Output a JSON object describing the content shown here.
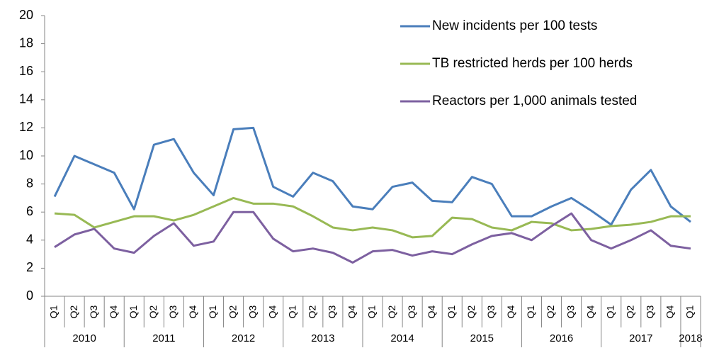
{
  "chart_data": {
    "type": "line",
    "category_groups": [
      {
        "label": "2010",
        "categories": [
          "Q1",
          "Q2",
          "Q3",
          "Q4"
        ]
      },
      {
        "label": "2011",
        "categories": [
          "Q1",
          "Q2",
          "Q3",
          "Q4"
        ]
      },
      {
        "label": "2012",
        "categories": [
          "Q1",
          "Q2",
          "Q3",
          "Q4"
        ]
      },
      {
        "label": "2013",
        "categories": [
          "Q1",
          "Q2",
          "Q3",
          "Q4"
        ]
      },
      {
        "label": "2014",
        "categories": [
          "Q1",
          "Q2",
          "Q3",
          "Q4"
        ]
      },
      {
        "label": "2015",
        "categories": [
          "Q1",
          "Q2",
          "Q3",
          "Q4"
        ]
      },
      {
        "label": "2016",
        "categories": [
          "Q1",
          "Q2",
          "Q3",
          "Q4"
        ]
      },
      {
        "label": "2017",
        "categories": [
          "Q1",
          "Q2",
          "Q3",
          "Q4"
        ]
      },
      {
        "label": "2018",
        "categories": [
          "Q1"
        ]
      }
    ],
    "series": [
      {
        "name": "New incidents per 100 tests",
        "color": "#4a7ebb",
        "values": [
          7.1,
          10.0,
          9.4,
          8.8,
          6.2,
          10.8,
          11.2,
          8.8,
          7.2,
          11.9,
          12.0,
          7.8,
          7.1,
          8.8,
          8.2,
          6.4,
          6.2,
          7.8,
          8.1,
          6.8,
          6.7,
          8.5,
          8.0,
          5.7,
          5.7,
          6.4,
          7.0,
          6.1,
          5.1,
          7.6,
          9.0,
          6.4,
          5.3
        ]
      },
      {
        "name": "TB restricted herds per 100 herds",
        "color": "#98b954",
        "values": [
          5.9,
          5.8,
          4.9,
          5.3,
          5.7,
          5.7,
          5.4,
          5.8,
          6.4,
          7.0,
          6.6,
          6.6,
          6.4,
          5.7,
          4.9,
          4.7,
          4.9,
          4.7,
          4.2,
          4.3,
          5.6,
          5.5,
          4.9,
          4.7,
          5.3,
          5.2,
          4.7,
          4.8,
          5.0,
          5.1,
          5.3,
          5.7,
          5.7
        ]
      },
      {
        "name": "Reactors per 1,000 animals tested",
        "color": "#7d60a0",
        "values": [
          3.5,
          4.4,
          4.8,
          3.4,
          3.1,
          4.3,
          5.2,
          3.6,
          3.9,
          6.0,
          6.0,
          4.1,
          3.2,
          3.4,
          3.1,
          2.4,
          3.2,
          3.3,
          2.9,
          3.2,
          3.0,
          3.7,
          4.3,
          4.5,
          4.0,
          5.0,
          5.9,
          4.0,
          3.4,
          4.0,
          4.7,
          3.6,
          3.4
        ]
      }
    ],
    "ylim": [
      0,
      20
    ],
    "yticks": [
      0,
      2,
      4,
      6,
      8,
      10,
      12,
      14,
      16,
      18,
      20
    ],
    "grid": false,
    "legend": "upper right"
  }
}
